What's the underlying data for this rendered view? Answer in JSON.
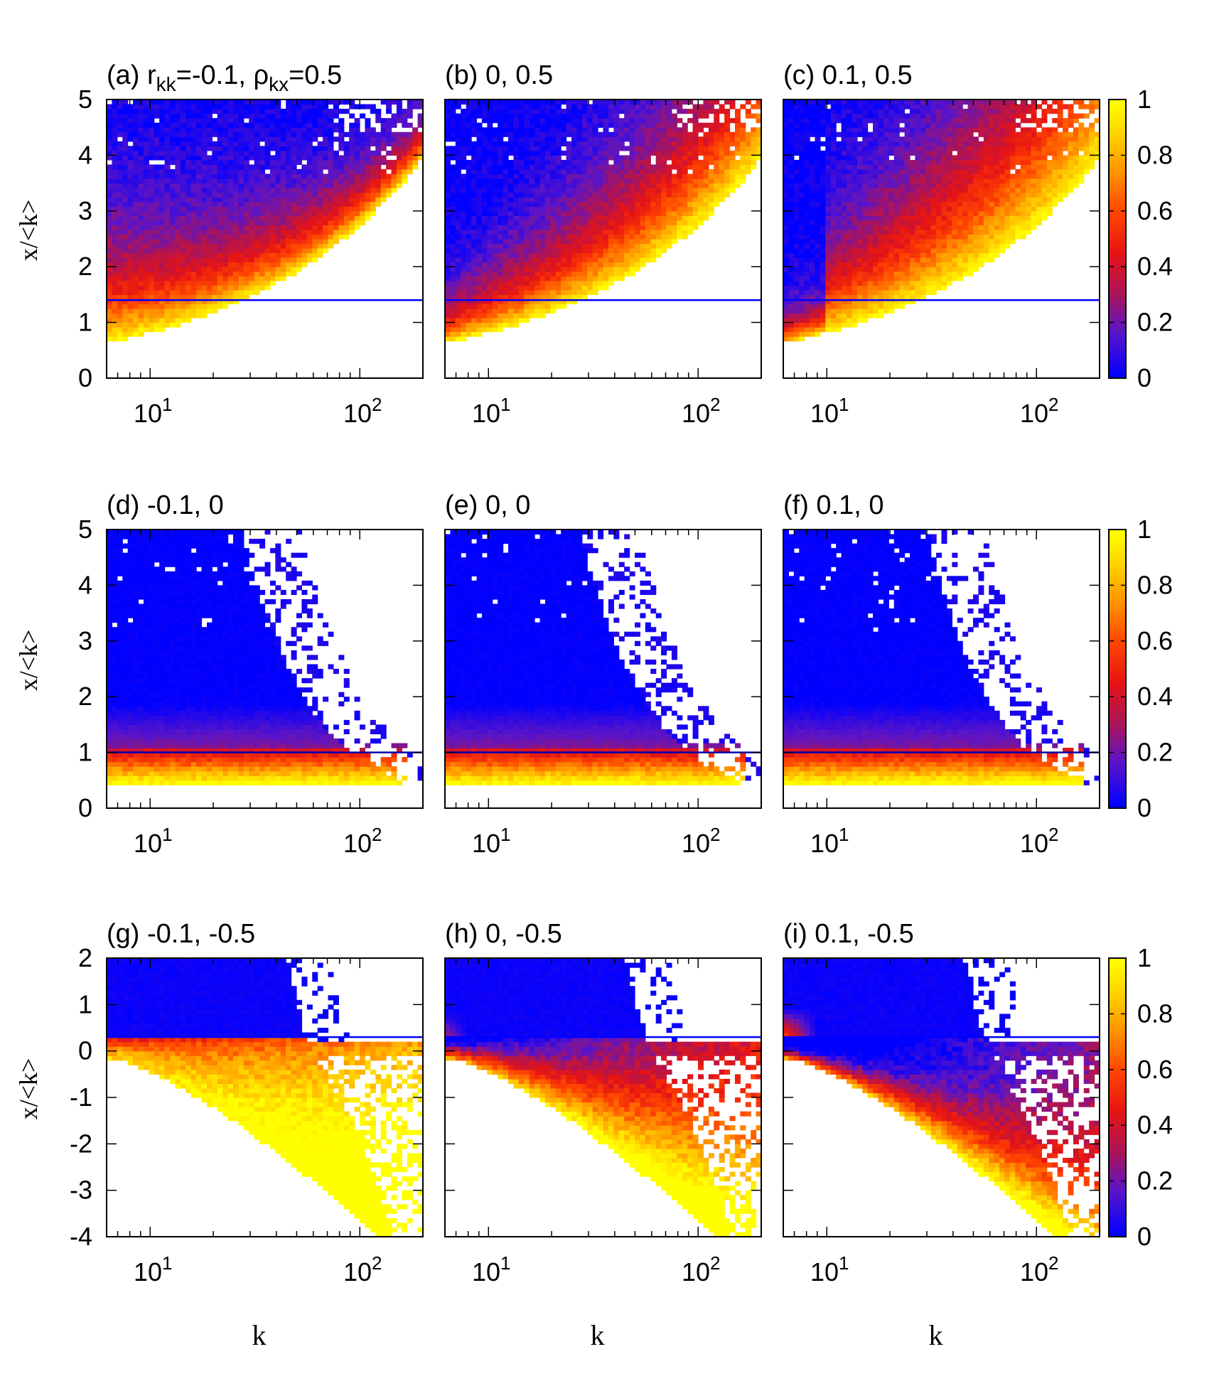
{
  "chart_data": {
    "type": "heatmap",
    "grid": false,
    "x_scale": "log",
    "x_tick_values": [
      10,
      100
    ],
    "colorbar": {
      "ticks": [
        "0",
        "0.2",
        "0.4",
        "0.6",
        "0.8",
        "1"
      ],
      "range": [
        0,
        1
      ],
      "colors": [
        "#0000ff",
        "#6a1fa8",
        "#c8102f",
        "#ff2000",
        "#ff8a00",
        "#ffd400",
        "#ffff00"
      ]
    },
    "x_tick_labels": [
      {
        "base": "10",
        "exp": "1"
      },
      {
        "base": "10",
        "exp": "2"
      }
    ],
    "xlabel": "k",
    "ylabel": "x/<k>",
    "panels": [
      {
        "id": "a",
        "title": "(a) r",
        "title_sub1": "kk",
        "title_mid": "=-0.1, ρ",
        "title_sub2": "kx",
        "title_end": "=0.5",
        "row": 0,
        "col": 0,
        "r_kk": -0.1,
        "rho_kx": 0.5,
        "xlim": [
          6.2,
          200
        ],
        "ylim": [
          0,
          5
        ],
        "threshold": 1.4,
        "yticks": [
          "0",
          "1",
          "2",
          "3",
          "4",
          "5"
        ]
      },
      {
        "id": "b",
        "title": "(b) 0, 0.5",
        "row": 0,
        "col": 1,
        "r_kk": 0,
        "rho_kx": 0.5,
        "xlim": [
          6.2,
          200
        ],
        "ylim": [
          0,
          5
        ],
        "threshold": 1.4
      },
      {
        "id": "c",
        "title": "(c) 0.1, 0.5",
        "row": 0,
        "col": 2,
        "r_kk": 0.1,
        "rho_kx": 0.5,
        "xlim": [
          6.2,
          200
        ],
        "ylim": [
          0,
          5
        ],
        "threshold": 1.4
      },
      {
        "id": "d",
        "title": "(d) -0.1, 0",
        "row": 1,
        "col": 0,
        "r_kk": -0.1,
        "rho_kx": 0,
        "xlim": [
          6.2,
          200
        ],
        "ylim": [
          0,
          5
        ],
        "threshold": 1.0,
        "yticks": [
          "0",
          "1",
          "2",
          "3",
          "4",
          "5"
        ]
      },
      {
        "id": "e",
        "title": "(e) 0, 0",
        "row": 1,
        "col": 1,
        "r_kk": 0,
        "rho_kx": 0,
        "xlim": [
          6.2,
          200
        ],
        "ylim": [
          0,
          5
        ],
        "threshold": 1.0
      },
      {
        "id": "f",
        "title": "(f) 0.1, 0",
        "row": 1,
        "col": 2,
        "r_kk": 0.1,
        "rho_kx": 0,
        "xlim": [
          6.2,
          200
        ],
        "ylim": [
          0,
          5
        ],
        "threshold": 1.0
      },
      {
        "id": "g",
        "title": "(g) -0.1, -0.5",
        "row": 2,
        "col": 0,
        "r_kk": -0.1,
        "rho_kx": -0.5,
        "xlim": [
          6.2,
          200
        ],
        "ylim": [
          -4,
          2
        ],
        "threshold": 0.3,
        "yticks": [
          "-4",
          "-3",
          "-2",
          "-1",
          "0",
          "1",
          "2"
        ]
      },
      {
        "id": "h",
        "title": "(h) 0, -0.5",
        "row": 2,
        "col": 1,
        "r_kk": 0,
        "rho_kx": -0.5,
        "xlim": [
          6.2,
          200
        ],
        "ylim": [
          -4,
          2
        ],
        "threshold": 0.3
      },
      {
        "id": "i",
        "title": "(i) 0.1, -0.5",
        "row": 2,
        "col": 2,
        "r_kk": 0.1,
        "rho_kx": -0.5,
        "xlim": [
          6.2,
          200
        ],
        "ylim": [
          -4,
          2
        ],
        "threshold": 0.3
      }
    ]
  }
}
